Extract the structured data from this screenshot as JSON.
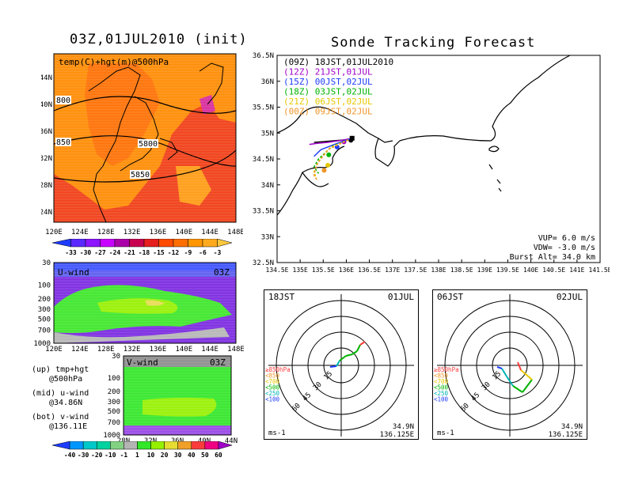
{
  "left_panel": {
    "title": "03Z,01JUL2010 (init)",
    "map_label": "temp(C)+hgt(m)@500hPa",
    "lat_ticks": [
      "44N",
      "40N",
      "36N",
      "32N",
      "28N",
      "24N"
    ],
    "lon_ticks": [
      "120E",
      "124E",
      "128E",
      "132E",
      "136E",
      "140E",
      "144E",
      "148E"
    ],
    "contour_labels": [
      "800",
      "850",
      "5800",
      "5850"
    ],
    "temp_colorbar": [
      "-33",
      "-30",
      "-27",
      "-24",
      "-21",
      "-18",
      "-15",
      "-12",
      "-9",
      "-6",
      "-3"
    ],
    "temp_colors": [
      "#1e3cff",
      "#5a28ff",
      "#8c14ff",
      "#c800ff",
      "#aa00aa",
      "#c80050",
      "#e61e1e",
      "#ff4b00",
      "#ff6e00",
      "#ff9600",
      "#ffaa1e",
      "#ffc83c"
    ],
    "uwind_label": "U-wind",
    "uwind_time": "03Z",
    "uwind_pressure_ticks": [
      "30",
      "100",
      "200",
      "300",
      "500",
      "700",
      "1000"
    ],
    "uwind_lon_ticks": [
      "120E",
      "124E",
      "128E",
      "132E",
      "136E",
      "140E",
      "144E",
      "148E"
    ],
    "vwind_label": "V-wind",
    "vwind_time": "03Z",
    "vwind_pressure_ticks": [
      "30",
      "100",
      "200",
      "300",
      "500",
      "700",
      "1000"
    ],
    "vwind_lat_ticks": [
      "28N",
      "32N",
      "36N",
      "40N",
      "44N"
    ],
    "notes": [
      {
        "line1": "(up) tmp+hgt",
        "line2": "@500hPa"
      },
      {
        "line1": "(mid) u-wind",
        "line2": "@34.86N"
      },
      {
        "line1": "(bot) v-wind",
        "line2": "@136.11E"
      }
    ],
    "wind_colorbar": [
      "-40",
      "-30",
      "-20",
      "-10",
      "-1",
      "1",
      "10",
      "20",
      "30",
      "40",
      "50",
      "60"
    ],
    "wind_colors": [
      "#1e3cff",
      "#0096ff",
      "#00c8c8",
      "#00d2a0",
      "#82d282",
      "#b4b4b4",
      "#32e628",
      "#96f000",
      "#e6dc32",
      "#f0a028",
      "#fa3c3c",
      "#f00082",
      "#a000c8"
    ]
  },
  "main_panel": {
    "title": "Sonde Tracking Forecast",
    "lat_ticks": [
      "36.5N",
      "36N",
      "35.5N",
      "35N",
      "34.5N",
      "34N",
      "33.5N",
      "33N",
      "32.5N"
    ],
    "lon_ticks": [
      "134.5E",
      "135E",
      "135.5E",
      "136E",
      "136.5E",
      "137E",
      "137.5E",
      "138E",
      "138.5E",
      "139E",
      "139.5E",
      "140E",
      "140.5E",
      "141E",
      "141.5E"
    ],
    "launches": [
      {
        "label": "(09Z)  18JST,01JUL2010",
        "color": "#000000"
      },
      {
        "label": "(12Z)  21JST,01JUL",
        "color": "#a000c8"
      },
      {
        "label": "(15Z)  00JST,02JUL",
        "color": "#1e3cff"
      },
      {
        "label": "(18Z)  03JST,02JUL",
        "color": "#00b400"
      },
      {
        "label": "(21Z)  06JST,02JUL",
        "color": "#e6c800"
      },
      {
        "label": "(00Z)  09JST,02JUL",
        "color": "#f09628"
      }
    ],
    "params": [
      "VUP=  6.0  m/s",
      "VDW= -3.0  m/s",
      "Burst Alt=  34.0  km"
    ]
  },
  "polars": [
    {
      "time": "18JST",
      "date": "01JUL",
      "lat": "34.9N",
      "lon": "136.125E",
      "unit": "ms-1",
      "rings": [
        "15",
        "30",
        "45",
        "60"
      ]
    },
    {
      "time": "06JST",
      "date": "02JUL",
      "lat": "34.9N",
      "lon": "136.125E",
      "unit": "ms-1",
      "rings": [
        "15",
        "30",
        "45",
        "60"
      ]
    }
  ],
  "polar_legend": [
    {
      "label": "≥850hPa",
      "color": "#fa3c3c"
    },
    {
      "label": "<850",
      "color": "#f09628"
    },
    {
      "label": "<700",
      "color": "#e6c800"
    },
    {
      "label": "<500",
      "color": "#00b400"
    },
    {
      "label": "<250",
      "color": "#00b4b4"
    },
    {
      "label": "<100",
      "color": "#1e3cff"
    }
  ],
  "chart_data": [
    {
      "type": "heatmap",
      "title": "03Z,01JUL2010 (init)",
      "subtitle": "temp(C)+hgt(m)@500hPa",
      "x": [
        "120E",
        "124E",
        "128E",
        "132E",
        "136E",
        "140E",
        "144E",
        "148E"
      ],
      "y": [
        "24N",
        "28N",
        "32N",
        "36N",
        "40N",
        "44N"
      ],
      "colorbar": [
        -33,
        -30,
        -27,
        -24,
        -21,
        -18,
        -15,
        -12,
        -9,
        -6,
        -3
      ],
      "contour_labels": [
        5800,
        5850
      ]
    },
    {
      "type": "heatmap",
      "title": "U-wind",
      "x": [
        "120E",
        "124E",
        "128E",
        "132E",
        "136E",
        "140E",
        "144E",
        "148E"
      ],
      "y": [
        1000,
        700,
        500,
        300,
        200,
        100,
        30
      ],
      "colorbar": [
        -40,
        -30,
        -20,
        -10,
        -1,
        1,
        10,
        20,
        30,
        40,
        50,
        60
      ]
    },
    {
      "type": "heatmap",
      "title": "V-wind",
      "x": [
        "28N",
        "32N",
        "36N",
        "40N",
        "44N"
      ],
      "y": [
        1000,
        700,
        500,
        300,
        200,
        100,
        30
      ],
      "colorbar": [
        -40,
        -30,
        -20,
        -10,
        -1,
        1,
        10,
        20,
        30,
        40,
        50,
        60
      ]
    },
    {
      "type": "line",
      "title": "Sonde Tracking Forecast",
      "xlim": [
        134.5,
        141.5
      ],
      "ylim": [
        32.5,
        36.5
      ],
      "launch_point": {
        "x": 136.125,
        "y": 34.9
      },
      "series": [
        {
          "name": "(09Z)  18JST,01JUL2010",
          "x": [
            136.125,
            136.0,
            135.7,
            135.45,
            135.3
          ],
          "y": [
            34.9,
            34.87,
            34.85,
            34.83,
            34.82
          ],
          "end": {
            "x": 136.1,
            "y": 34.86
          }
        },
        {
          "name": "(12Z)  21JST,01JUL",
          "x": [
            136.125,
            135.9,
            135.6,
            135.35,
            135.2
          ],
          "y": [
            34.9,
            34.86,
            34.82,
            34.8,
            34.78
          ],
          "end": {
            "x": 135.95,
            "y": 34.83
          }
        },
        {
          "name": "(15Z)  00JST,02JUL",
          "x": [
            136.125,
            135.8,
            135.45,
            135.3
          ],
          "y": [
            34.9,
            34.8,
            34.68,
            34.55
          ],
          "end": {
            "x": 135.8,
            "y": 34.73
          }
        },
        {
          "name": "(18Z)  03JST,02JUL",
          "x": [
            136.125,
            135.7,
            135.4,
            135.3,
            135.4
          ],
          "y": [
            34.9,
            34.75,
            34.5,
            34.35,
            34.22
          ],
          "end": {
            "x": 135.62,
            "y": 34.58
          }
        },
        {
          "name": "(21Z)  06JST,02JUL",
          "x": [
            136.125,
            135.65,
            135.4,
            135.3,
            135.35
          ],
          "y": [
            34.9,
            34.72,
            34.45,
            34.25,
            34.13
          ],
          "end": {
            "x": 135.6,
            "y": 34.38
          }
        },
        {
          "name": "(00Z)  09JST,02JUL",
          "x": [
            136.125,
            135.6,
            135.35,
            135.3,
            135.38
          ],
          "y": [
            34.9,
            34.68,
            34.38,
            34.18,
            34.08
          ],
          "end": {
            "x": 135.52,
            "y": 34.28
          }
        }
      ]
    }
  ]
}
